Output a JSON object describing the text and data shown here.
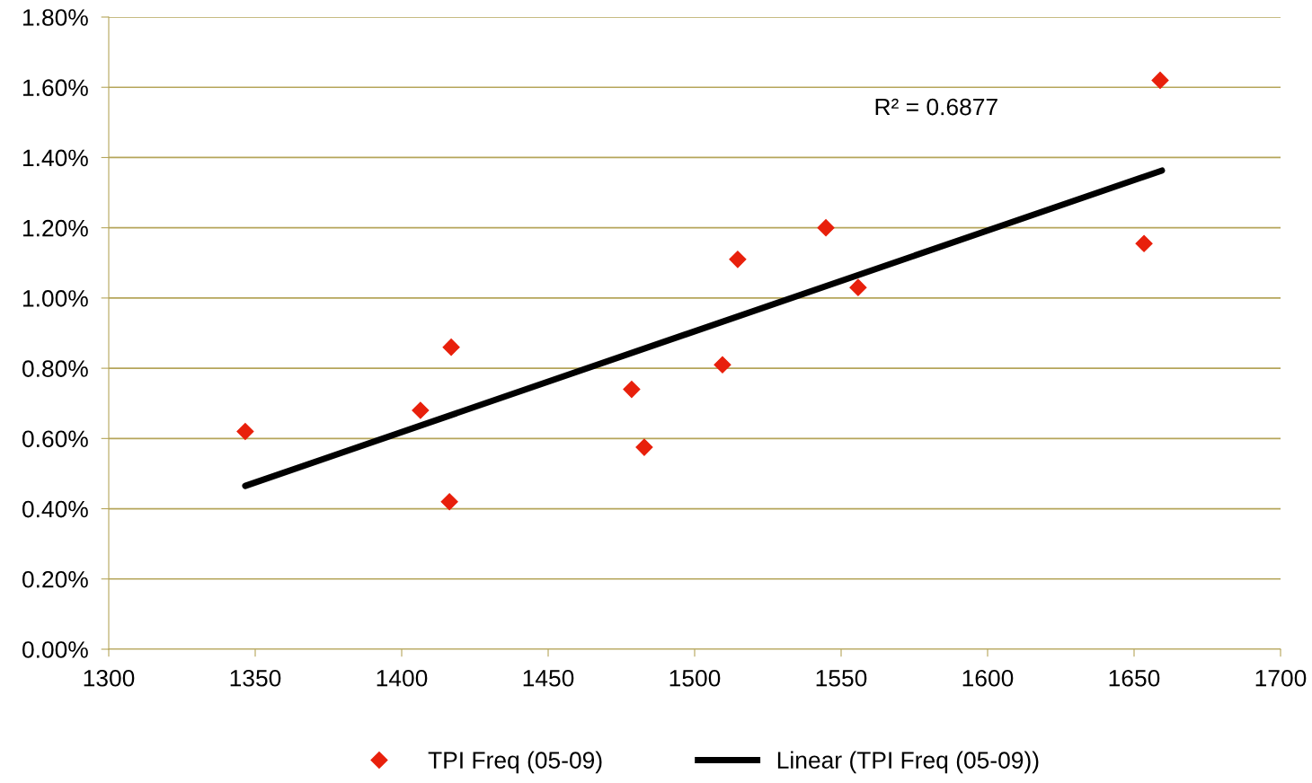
{
  "chart_data": {
    "type": "scatter",
    "series": [
      {
        "name": "TPI Freq (05-09)",
        "type": "scatter",
        "color": "#e8200c",
        "marker": "diamond",
        "x": [
          1346.6,
          1406.4,
          1416.9,
          1416.3,
          1478.5,
          1482.8,
          1509.5,
          1514.7,
          1544.8,
          1555.8,
          1653.4,
          1658.9
        ],
        "values": [
          0.62,
          0.68,
          0.86,
          0.42,
          0.74,
          0.575,
          0.81,
          1.11,
          1.2,
          1.03,
          1.155,
          1.62
        ]
      },
      {
        "name": "Linear (TPI Freq (05-09))",
        "type": "line",
        "color": "#000000",
        "marker": "none",
        "x": [
          1346.6,
          1659.5
        ],
        "values": [
          0.465,
          1.363
        ]
      }
    ],
    "annotations": [
      "R² = 0.6877"
    ],
    "xlim": [
      1300,
      1700
    ],
    "xticks": [
      1300,
      1350,
      1400,
      1450,
      1500,
      1550,
      1600,
      1650,
      1700
    ],
    "ylim": [
      0,
      1.8
    ],
    "yticks": [
      {
        "value": 0,
        "label": "0.00%"
      },
      {
        "value": 0.2,
        "label": "0.20%"
      },
      {
        "value": 0.4,
        "label": "0.40%"
      },
      {
        "value": 0.6,
        "label": "0.60%"
      },
      {
        "value": 0.8,
        "label": "0.80%"
      },
      {
        "value": 1.0,
        "label": "1.00%"
      },
      {
        "value": 1.2,
        "label": "1.20%"
      },
      {
        "value": 1.4,
        "label": "1.40%"
      },
      {
        "value": 1.6,
        "label": "1.60%"
      },
      {
        "value": 1.8,
        "label": "1.80%"
      }
    ],
    "grid": "y",
    "legend": "bottom"
  }
}
